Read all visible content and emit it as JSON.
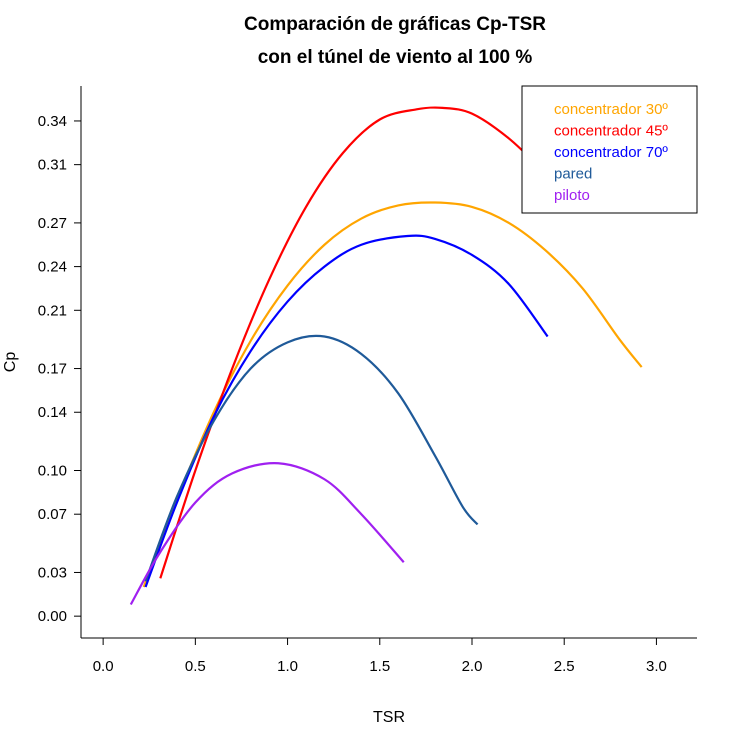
{
  "chart_data": {
    "type": "line",
    "title": [
      "Comparación de gráficas Cp-TSR",
      "con el túnel de viento al 100 %"
    ],
    "xlabel": "TSR",
    "ylabel": "Cp",
    "xlim": [
      -0.12,
      3.22
    ],
    "ylim": [
      -0.015,
      0.364
    ],
    "x_ticks": [
      0.0,
      0.5,
      1.0,
      1.5,
      2.0,
      2.5,
      3.0
    ],
    "x_tick_labels": [
      "0.0",
      "0.5",
      "1.0",
      "1.5",
      "2.0",
      "2.5",
      "3.0"
    ],
    "y_ticks": [
      0.0,
      0.03,
      0.07,
      0.1,
      0.14,
      0.17,
      0.21,
      0.24,
      0.27,
      0.31,
      0.34
    ],
    "y_tick_labels": [
      "0.00",
      "0.03",
      "0.07",
      "0.10",
      "0.14",
      "0.17",
      "0.21",
      "0.24",
      "0.27",
      "0.31",
      "0.34"
    ],
    "grid": false,
    "legend_position": "top-right",
    "series": [
      {
        "name": "concentrador 30º",
        "color": "#FFA500",
        "x": [
          0.22,
          0.4,
          0.6,
          0.8,
          1.0,
          1.2,
          1.4,
          1.6,
          1.8,
          2.0,
          2.2,
          2.4,
          2.6,
          2.8,
          2.92
        ],
        "y": [
          0.02,
          0.08,
          0.14,
          0.189,
          0.227,
          0.255,
          0.273,
          0.282,
          0.284,
          0.281,
          0.27,
          0.251,
          0.225,
          0.19,
          0.171
        ]
      },
      {
        "name": "concentrador 45º",
        "color": "#FF0000",
        "x": [
          0.31,
          0.5,
          0.7,
          0.9,
          1.1,
          1.3,
          1.5,
          1.7,
          1.84,
          2.0,
          2.2,
          2.4,
          2.45
        ],
        "y": [
          0.026,
          0.1,
          0.17,
          0.231,
          0.281,
          0.318,
          0.341,
          0.348,
          0.349,
          0.345,
          0.328,
          0.304,
          0.298
        ]
      },
      {
        "name": "concentrador 70º",
        "color": "#0000FF",
        "x": [
          0.23,
          0.4,
          0.6,
          0.8,
          1.0,
          1.2,
          1.4,
          1.65,
          1.8,
          2.0,
          2.2,
          2.41
        ],
        "y": [
          0.02,
          0.078,
          0.137,
          0.182,
          0.216,
          0.24,
          0.255,
          0.261,
          0.259,
          0.248,
          0.228,
          0.192
        ]
      },
      {
        "name": "pared",
        "color": "#1F5A99",
        "x": [
          0.23,
          0.4,
          0.6,
          0.8,
          1.0,
          1.2,
          1.4,
          1.6,
          1.8,
          1.95,
          2.03
        ],
        "y": [
          0.024,
          0.082,
          0.134,
          0.17,
          0.188,
          0.192,
          0.18,
          0.153,
          0.11,
          0.075,
          0.063
        ]
      },
      {
        "name": "piloto",
        "color": "#A020F0",
        "x": [
          0.15,
          0.3,
          0.5,
          0.7,
          0.95,
          1.2,
          1.4,
          1.63
        ],
        "y": [
          0.008,
          0.042,
          0.078,
          0.098,
          0.105,
          0.094,
          0.07,
          0.037
        ]
      }
    ]
  }
}
